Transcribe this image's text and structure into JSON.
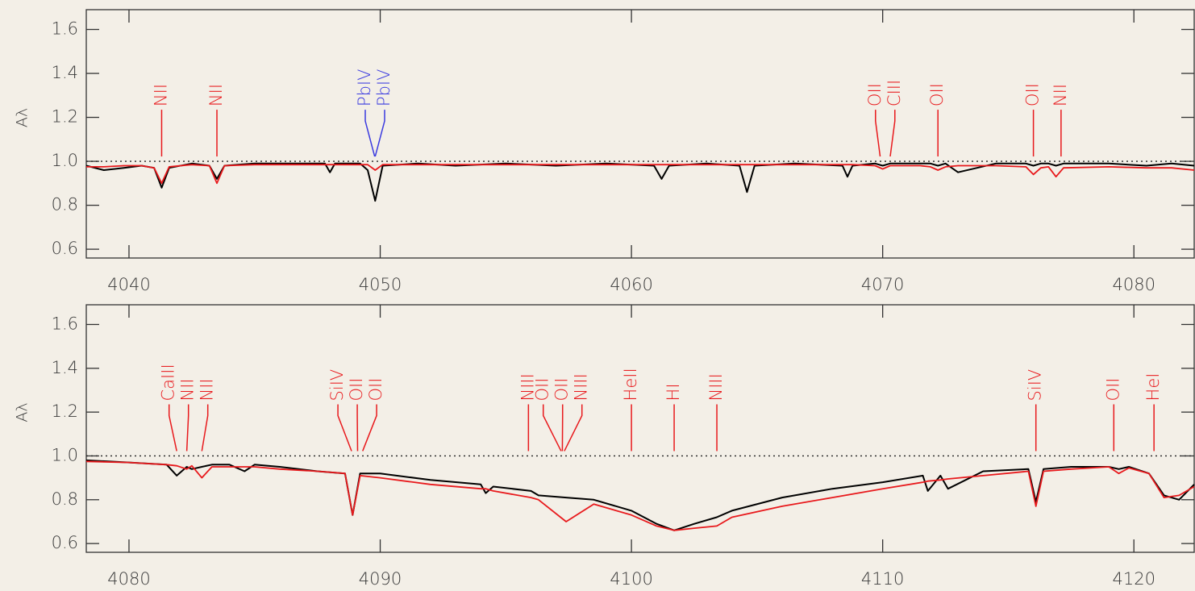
{
  "chart_data": [
    {
      "type": "line",
      "ylabel": "Aλ",
      "xlim": [
        4038.3,
        4082.4
      ],
      "ylim": [
        0.56,
        1.69
      ],
      "xticks": [
        4040,
        4050,
        4060,
        4070,
        4080
      ],
      "yticks": [
        0.6,
        0.8,
        {
          "value": 1,
          "label": "1.0"
        },
        1.2,
        1.4,
        1.6
      ],
      "hline": 1,
      "x": [
        4038.3,
        4039,
        4039.8,
        4040.5,
        4041.0,
        4041.3,
        4041.6,
        4042.5,
        4043.2,
        4043.5,
        4043.8,
        4045,
        4046.5,
        4047.8,
        4048,
        4048.2,
        4049.2,
        4049.5,
        4049.8,
        4050.1,
        4051.5,
        4053,
        4055,
        4057,
        4059,
        4060.9,
        4061.2,
        4061.5,
        4063,
        4064.3,
        4064.6,
        4064.9,
        4066.5,
        4068.4,
        4068.6,
        4068.8,
        4069.7,
        4070,
        4070.3,
        4071.5,
        4071.9,
        4072.2,
        4072.5,
        4073,
        4074.5,
        4075.7,
        4076,
        4076.3,
        4076.6,
        4076.9,
        4077.2,
        4079,
        4080.5,
        4081.5,
        4082.4
      ],
      "series": [
        {
          "color": "#000000",
          "values": [
            0.98,
            0.96,
            0.97,
            0.98,
            0.97,
            0.88,
            0.97,
            0.99,
            0.98,
            0.92,
            0.98,
            0.99,
            0.99,
            0.99,
            0.95,
            0.99,
            0.99,
            0.96,
            0.82,
            0.98,
            0.99,
            0.98,
            0.99,
            0.98,
            0.99,
            0.98,
            0.92,
            0.98,
            0.99,
            0.98,
            0.86,
            0.98,
            0.99,
            0.98,
            0.93,
            0.98,
            0.99,
            0.98,
            0.99,
            0.99,
            0.99,
            0.98,
            0.99,
            0.95,
            0.99,
            0.99,
            0.98,
            0.99,
            0.99,
            0.98,
            0.99,
            0.99,
            0.98,
            0.99,
            0.98
          ]
        },
        {
          "color": "#e8191c",
          "values": [
            0.975,
            0.975,
            0.98,
            0.98,
            0.97,
            0.9,
            0.975,
            0.985,
            0.98,
            0.9,
            0.98,
            0.985,
            0.985,
            0.985,
            0.985,
            0.985,
            0.985,
            0.985,
            0.96,
            0.985,
            0.985,
            0.985,
            0.985,
            0.985,
            0.985,
            0.985,
            0.985,
            0.985,
            0.985,
            0.985,
            0.985,
            0.985,
            0.985,
            0.985,
            0.985,
            0.985,
            0.98,
            0.965,
            0.98,
            0.98,
            0.975,
            0.96,
            0.975,
            0.98,
            0.98,
            0.975,
            0.94,
            0.97,
            0.975,
            0.93,
            0.97,
            0.975,
            0.97,
            0.97,
            0.96
          ]
        }
      ],
      "annotations": [
        {
          "label": "NII",
          "x": 4041.3,
          "color": "#e8191c"
        },
        {
          "label": "NII",
          "x": 4043.5,
          "color": "#e8191c"
        },
        {
          "label": "PbIV",
          "x": 4049.78,
          "color": "#3a3adf"
        },
        {
          "label": "PbIV",
          "x": 4049.8,
          "color": "#3a3adf"
        },
        {
          "label": "OII",
          "x": 4069.9,
          "color": "#e8191c"
        },
        {
          "label": "CIII",
          "x": 4070.3,
          "color": "#e8191c"
        },
        {
          "label": "OII",
          "x": 4072.2,
          "color": "#e8191c"
        },
        {
          "label": "OII",
          "x": 4076.0,
          "color": "#e8191c"
        },
        {
          "label": "NII",
          "x": 4077.1,
          "color": "#e8191c"
        }
      ]
    },
    {
      "type": "line",
      "ylabel": "Aλ",
      "xlim": [
        4078.3,
        4122.4
      ],
      "ylim": [
        0.56,
        1.69
      ],
      "xticks": [
        4080,
        4090,
        4100,
        4110,
        4120
      ],
      "yticks": [
        0.6,
        0.8,
        {
          "value": 1,
          "label": "1.0"
        },
        1.2,
        1.4,
        1.6
      ],
      "hline": 1,
      "x": [
        4078.3,
        4080,
        4081.5,
        4081.9,
        4082.3,
        4082.5,
        4082.9,
        4083.3,
        4084,
        4084.6,
        4085,
        4086,
        4087.5,
        4088.6,
        4088.9,
        4089.2,
        4090,
        4092,
        4094,
        4094.2,
        4094.5,
        4096,
        4096.3,
        4097.4,
        4098.5,
        4100,
        4101,
        4101.7,
        4102.5,
        4103.4,
        4104,
        4106,
        4108,
        4110,
        4111.6,
        4111.8,
        4112.3,
        4112.6,
        4114,
        4115.8,
        4116.1,
        4116.4,
        4117.5,
        4119,
        4119.4,
        4119.8,
        4120.6,
        4121.2,
        4121.8,
        4122.4
      ],
      "series": [
        {
          "color": "#000000",
          "values": [
            0.98,
            0.97,
            0.96,
            0.91,
            0.95,
            0.94,
            0.95,
            0.96,
            0.96,
            0.93,
            0.96,
            0.95,
            0.93,
            0.92,
            0.73,
            0.92,
            0.92,
            0.89,
            0.87,
            0.83,
            0.86,
            0.84,
            0.82,
            0.81,
            0.8,
            0.75,
            0.69,
            0.66,
            0.69,
            0.72,
            0.75,
            0.81,
            0.85,
            0.88,
            0.91,
            0.84,
            0.91,
            0.85,
            0.93,
            0.94,
            0.79,
            0.94,
            0.95,
            0.95,
            0.94,
            0.95,
            0.92,
            0.82,
            0.8,
            0.87
          ]
        },
        {
          "color": "#e8191c",
          "values": [
            0.975,
            0.97,
            0.96,
            0.955,
            0.94,
            0.955,
            0.9,
            0.95,
            0.95,
            0.95,
            0.95,
            0.94,
            0.93,
            0.92,
            0.73,
            0.91,
            0.9,
            0.87,
            0.85,
            0.85,
            0.84,
            0.81,
            0.8,
            0.7,
            0.78,
            0.73,
            0.68,
            0.66,
            0.67,
            0.68,
            0.72,
            0.77,
            0.81,
            0.85,
            0.88,
            0.885,
            0.89,
            0.895,
            0.91,
            0.93,
            0.77,
            0.93,
            0.94,
            0.95,
            0.92,
            0.945,
            0.92,
            0.81,
            0.82,
            0.86
          ]
        }
      ],
      "annotations": [
        {
          "label": "CaIII",
          "x": 4081.9,
          "color": "#e8191c"
        },
        {
          "label": "NII",
          "x": 4082.3,
          "color": "#e8191c"
        },
        {
          "label": "NII",
          "x": 4082.9,
          "color": "#e8191c"
        },
        {
          "label": "SiIV",
          "x": 4088.86,
          "color": "#e8191c"
        },
        {
          "label": "OII",
          "x": 4089.1,
          "color": "#e8191c"
        },
        {
          "label": "OII",
          "x": 4089.3,
          "color": "#e8191c"
        },
        {
          "label": "NIII",
          "x": 4095.9,
          "color": "#e8191c"
        },
        {
          "label": "OII",
          "x": 4097.2,
          "color": "#e8191c"
        },
        {
          "label": "OII",
          "x": 4097.25,
          "color": "#e8191c"
        },
        {
          "label": "NIII",
          "x": 4097.33,
          "color": "#e8191c"
        },
        {
          "label": "HeII",
          "x": 4100.0,
          "color": "#e8191c"
        },
        {
          "label": "HI",
          "x": 4101.7,
          "color": "#e8191c"
        },
        {
          "label": "NIII",
          "x": 4103.4,
          "color": "#e8191c"
        },
        {
          "label": "SiIV",
          "x": 4116.1,
          "color": "#e8191c"
        },
        {
          "label": "OII",
          "x": 4119.2,
          "color": "#e8191c"
        },
        {
          "label": "HeI",
          "x": 4120.8,
          "color": "#e8191c"
        }
      ]
    }
  ]
}
